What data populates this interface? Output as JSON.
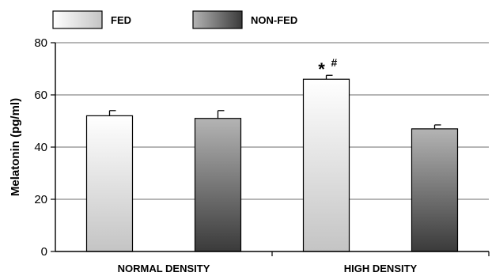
{
  "chart_data": {
    "type": "bar",
    "ylabel": "Melatonin (pg/ml)",
    "xlabel": "",
    "ylim": [
      0,
      80
    ],
    "yticks": [
      0,
      20,
      40,
      60,
      80
    ],
    "grid": true,
    "legend_position": "top-left",
    "categories": [
      "NORMAL DENSITY",
      "HIGH DENSITY"
    ],
    "series": [
      {
        "name": "FED",
        "values": [
          52,
          66
        ],
        "errors": [
          2,
          1.5
        ],
        "gradient": [
          "#ffffff",
          "#c4c4c4"
        ]
      },
      {
        "name": "NON-FED",
        "values": [
          51,
          47
        ],
        "errors": [
          3,
          1.5
        ],
        "gradient": [
          "#b4b4b4",
          "#3a3a3a"
        ]
      }
    ],
    "annotations": [
      {
        "category": "HIGH DENSITY",
        "series": "FED",
        "symbols": [
          "*",
          "#"
        ]
      }
    ]
  }
}
